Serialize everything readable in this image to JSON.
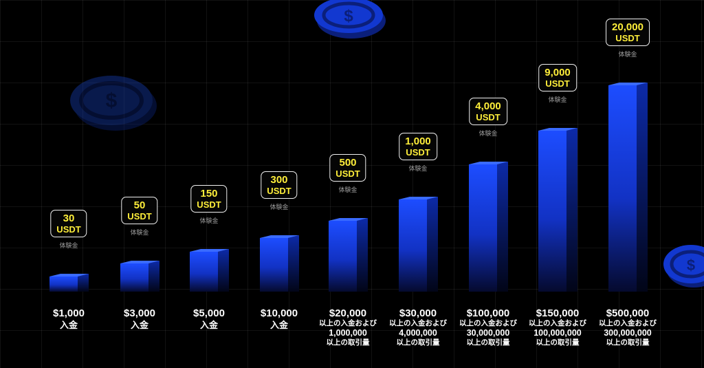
{
  "chart_data": {
    "type": "bar",
    "categories": [
      "$1,000",
      "$3,000",
      "$5,000",
      "$10,000",
      "$20,000",
      "$30,000",
      "$100,000",
      "$150,000",
      "$500,000"
    ],
    "values": [
      30,
      50,
      150,
      300,
      500,
      1000,
      4000,
      9000,
      20000
    ],
    "unit": "USDT",
    "value_note": "体験金",
    "tiers": [
      {
        "deposit": "$1,000",
        "suffix": "入金",
        "volume": "",
        "volume_suffix": ""
      },
      {
        "deposit": "$3,000",
        "suffix": "入金",
        "volume": "",
        "volume_suffix": ""
      },
      {
        "deposit": "$5,000",
        "suffix": "入金",
        "volume": "",
        "volume_suffix": ""
      },
      {
        "deposit": "$10,000",
        "suffix": "入金",
        "volume": "",
        "volume_suffix": ""
      },
      {
        "deposit": "$20,000",
        "suffix": "以上の入金および",
        "volume": "1,000,000",
        "volume_suffix": "以上の取引量"
      },
      {
        "deposit": "$30,000",
        "suffix": "以上の入金および",
        "volume": "4,000,000",
        "volume_suffix": "以上の取引量"
      },
      {
        "deposit": "$100,000",
        "suffix": "以上の入金および",
        "volume": "30,000,000",
        "volume_suffix": "以上の取引量"
      },
      {
        "deposit": "$150,000",
        "suffix": "以上の入金および",
        "volume": "100,000,000",
        "volume_suffix": "以上の取引量"
      },
      {
        "deposit": "$500,000",
        "suffix": "以上の入金および",
        "volume": "300,000,000",
        "volume_suffix": "以上の取引量"
      }
    ],
    "reward_labels": [
      "30",
      "50",
      "150",
      "300",
      "500",
      "1,000",
      "4,000",
      "9,000",
      "20,000"
    ],
    "title": "",
    "xlabel": "",
    "ylabel": "",
    "grid": true,
    "legend": "none"
  },
  "colors": {
    "background": "#000000",
    "bar_top": "#1d4dff",
    "bar_bottom": "#050a2e",
    "badge_text": "#ffef3a",
    "coin": "#1238c8"
  },
  "decorations": [
    "coin-icon",
    "coin-icon",
    "coin-icon"
  ]
}
